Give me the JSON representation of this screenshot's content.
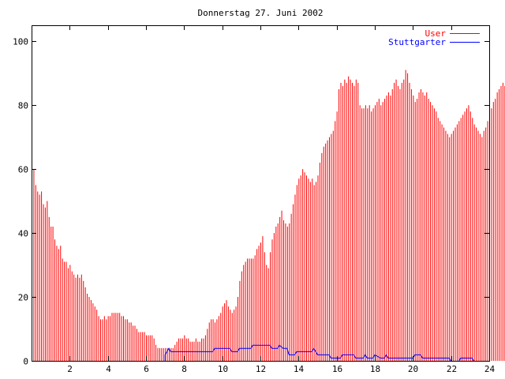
{
  "chart_data": {
    "type": "bar",
    "title": "Donnerstag 27. Juni 2002",
    "xlabel": "",
    "ylabel": "",
    "xlim": [
      0,
      24
    ],
    "ylim": [
      0,
      105
    ],
    "x_ticks": [
      2,
      4,
      6,
      8,
      10,
      12,
      14,
      16,
      18,
      20,
      22,
      24
    ],
    "x_tick_labels": [
      "2",
      "4",
      "6",
      "8",
      "10",
      "12",
      "14",
      "16",
      "18",
      "20",
      "22",
      "24"
    ],
    "y_ticks": [
      0,
      20,
      40,
      60,
      80,
      100
    ],
    "y_tick_labels": [
      "0",
      "20",
      "40",
      "60",
      "80",
      "100"
    ],
    "legend_position": "top-right",
    "colors": {
      "user": "#ff0000",
      "stuttgarter": "#0000ff",
      "frame": "#000000"
    },
    "series": [
      {
        "name": "User",
        "style": "impulses",
        "x_step_hours": 0.1,
        "values": [
          67,
          60,
          55,
          53,
          52,
          53,
          49,
          48,
          50,
          45,
          42,
          42,
          38,
          36,
          35,
          36,
          32,
          31,
          31,
          29,
          30,
          28,
          27,
          26,
          27,
          26,
          27,
          25,
          23,
          21,
          20,
          19,
          18,
          17,
          16,
          14,
          13,
          13,
          14,
          13,
          14,
          14,
          15,
          15,
          15,
          15,
          15,
          14,
          14,
          13,
          13,
          12,
          12,
          11,
          11,
          10,
          9,
          9,
          9,
          9,
          8,
          8,
          8,
          8,
          7,
          5,
          4,
          4,
          4,
          4,
          4,
          4,
          4,
          4,
          4,
          5,
          6,
          7,
          7,
          7,
          8,
          7,
          7,
          6,
          6,
          6,
          7,
          6,
          6,
          7,
          7,
          8,
          10,
          12,
          13,
          13,
          12,
          13,
          14,
          15,
          17,
          18,
          19,
          17,
          16,
          15,
          16,
          17,
          20,
          25,
          28,
          30,
          31,
          32,
          32,
          32,
          32,
          33,
          35,
          36,
          37,
          39,
          34,
          30,
          29,
          34,
          38,
          40,
          42,
          43,
          45,
          47,
          44,
          43,
          42,
          43,
          46,
          49,
          52,
          55,
          57,
          58,
          60,
          59,
          58,
          57,
          56,
          57,
          55,
          56,
          58,
          62,
          65,
          67,
          68,
          69,
          70,
          71,
          72,
          75,
          78,
          85,
          87,
          86,
          88,
          87,
          89,
          88,
          87,
          86,
          88,
          87,
          80,
          79,
          79,
          80,
          79,
          80,
          78,
          79,
          80,
          81,
          82,
          80,
          81,
          82,
          83,
          84,
          83,
          85,
          87,
          88,
          86,
          85,
          87,
          88,
          91,
          90,
          87,
          85,
          83,
          81,
          82,
          84,
          85,
          84,
          83,
          84,
          82,
          81,
          80,
          79,
          78,
          76,
          75,
          74,
          73,
          72,
          71,
          70,
          71,
          72,
          73,
          74,
          75,
          76,
          77,
          78,
          79,
          80,
          78,
          76,
          74,
          73,
          72,
          71,
          70,
          72,
          73,
          75,
          77,
          79,
          81,
          82,
          84,
          85,
          86,
          87,
          86,
          85,
          86,
          87,
          88,
          85,
          84,
          85,
          86,
          87,
          88,
          87,
          88,
          89,
          88,
          87,
          86,
          84,
          82,
          80,
          79,
          78,
          77,
          76,
          74,
          72,
          70,
          68,
          67,
          66
        ]
      },
      {
        "name": "Stuttgarter",
        "style": "steps",
        "points": [
          [
            0,
            0
          ],
          [
            7.0,
            0
          ],
          [
            7.0,
            2
          ],
          [
            7.1,
            3
          ],
          [
            7.2,
            4
          ],
          [
            7.3,
            3
          ],
          [
            9.5,
            3
          ],
          [
            9.6,
            4
          ],
          [
            10.4,
            4
          ],
          [
            10.5,
            3
          ],
          [
            10.8,
            3
          ],
          [
            10.9,
            4
          ],
          [
            11.5,
            4
          ],
          [
            11.6,
            5
          ],
          [
            12.5,
            5
          ],
          [
            12.6,
            4
          ],
          [
            12.9,
            4
          ],
          [
            13.0,
            5
          ],
          [
            13.2,
            4
          ],
          [
            13.4,
            4
          ],
          [
            13.5,
            2
          ],
          [
            13.8,
            2
          ],
          [
            13.9,
            3
          ],
          [
            14.7,
            3
          ],
          [
            14.8,
            4
          ],
          [
            14.9,
            3
          ],
          [
            15.0,
            2
          ],
          [
            15.6,
            2
          ],
          [
            15.7,
            1
          ],
          [
            16.2,
            1
          ],
          [
            16.3,
            2
          ],
          [
            16.9,
            2
          ],
          [
            17.0,
            1
          ],
          [
            17.4,
            1
          ],
          [
            17.5,
            2
          ],
          [
            17.6,
            1
          ],
          [
            17.9,
            1
          ],
          [
            18.0,
            2
          ],
          [
            18.3,
            1
          ],
          [
            18.5,
            1
          ],
          [
            18.6,
            2
          ],
          [
            18.7,
            1
          ],
          [
            20.0,
            1
          ],
          [
            20.1,
            2
          ],
          [
            20.4,
            2
          ],
          [
            20.5,
            1
          ],
          [
            21.9,
            1
          ],
          [
            22.0,
            0
          ],
          [
            22.4,
            0
          ],
          [
            22.5,
            1
          ],
          [
            23.1,
            1
          ],
          [
            23.2,
            0
          ],
          [
            24.0,
            0
          ]
        ]
      }
    ]
  }
}
